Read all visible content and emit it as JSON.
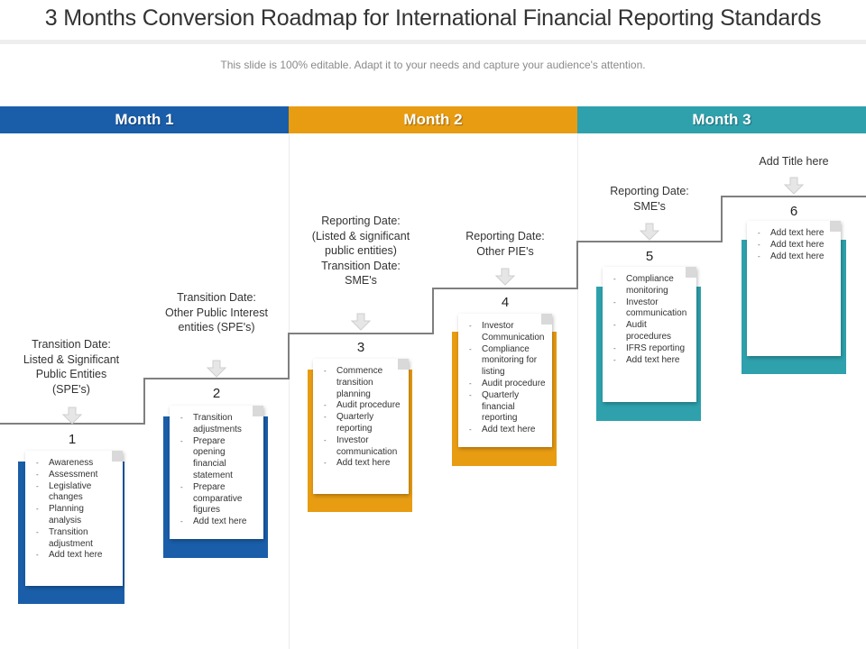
{
  "title": "3 Months Conversion Roadmap for International Financial Reporting Standards",
  "subtitle": "This slide is 100% editable. Adapt it to your needs and capture your audience's attention.",
  "colors": {
    "month1": "#1a5ea9",
    "month2": "#e89c12",
    "month3": "#2ea1ad"
  },
  "months": [
    {
      "label": "Month 1"
    },
    {
      "label": "Month 2"
    },
    {
      "label": "Month 3"
    }
  ],
  "steps": [
    {
      "number": "1",
      "title": "Transition Date: Listed & Significant Public Entities (SPE's)",
      "items": [
        "Awareness",
        "Assessment",
        "Legislative changes",
        "Planning analysis",
        "Transition adjustment",
        "Add text here"
      ]
    },
    {
      "number": "2",
      "title": "Transition Date: Other Public Interest entities (SPE's)",
      "items": [
        "Transition adjustments",
        "Prepare opening financial statement",
        "Prepare comparative figures",
        "Add text here"
      ]
    },
    {
      "number": "3",
      "title": "Reporting Date: (Listed & significant public entities) Transition Date: SME's",
      "items": [
        "Commence transition planning",
        "Audit procedure",
        "Quarterly reporting",
        "Investor communication",
        "Add text here"
      ]
    },
    {
      "number": "4",
      "title": "Reporting Date: Other PIE's",
      "items": [
        "Investor Communication",
        "Compliance monitoring for listing",
        "Audit procedure",
        "Quarterly financial reporting",
        "Add text here"
      ]
    },
    {
      "number": "5",
      "title": "Reporting Date: SME's",
      "items": [
        "Compliance monitoring",
        "Investor communication",
        "Audit procedures",
        "IFRS reporting",
        "Add text here"
      ]
    },
    {
      "number": "6",
      "title": "Add Title here",
      "items": [
        "Add text here",
        "Add text here",
        "Add text here"
      ]
    }
  ]
}
